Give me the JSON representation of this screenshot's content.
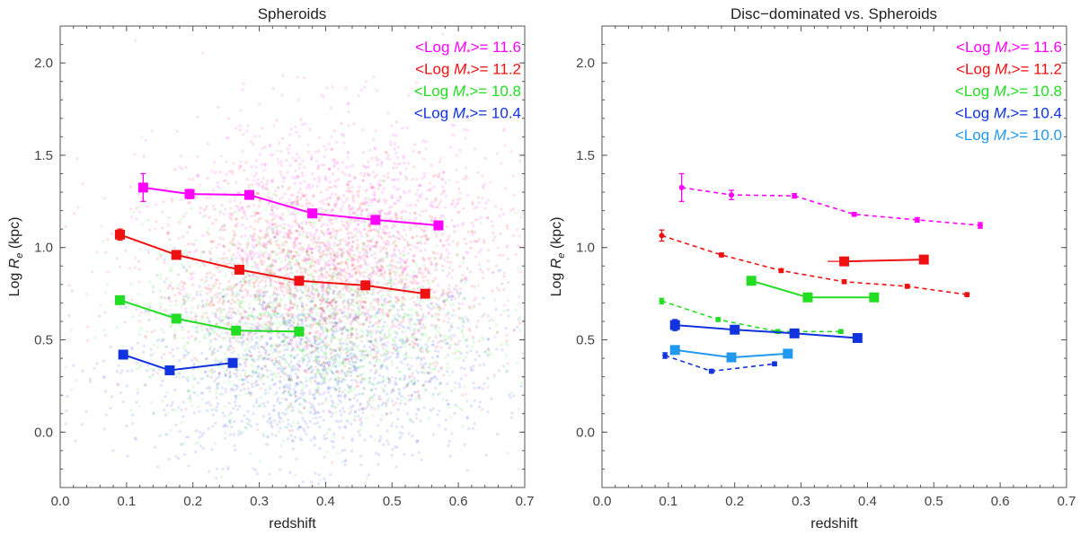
{
  "chart_data": [
    {
      "type": "scatter",
      "title": "Spheroids",
      "xlabel": "redshift",
      "ylabel_prefix": "Log ",
      "ylabel_var": "R",
      "ylabel_sub": "e",
      "ylabel_suffix": " (kpc)",
      "xlim": [
        0.0,
        0.7
      ],
      "ylim": [
        -0.3,
        2.2
      ],
      "xticks": [
        "0.0",
        "0.1",
        "0.2",
        "0.3",
        "0.4",
        "0.5",
        "0.6",
        "0.7"
      ],
      "yticks": [
        "0.0",
        "0.5",
        "1.0",
        "1.5",
        "2.0"
      ],
      "background_scatter": true,
      "legend_position": "top-right",
      "series": [
        {
          "legend_pre": "<Log ",
          "legend_var": "M",
          "legend_sub": "*",
          "legend_post": ">= 11.6",
          "color": "#ff00ff",
          "style": "solid",
          "x": [
            0.125,
            0.195,
            0.285,
            0.38,
            0.475,
            0.57
          ],
          "y": [
            1.325,
            1.29,
            1.285,
            1.185,
            1.15,
            1.12
          ],
          "err": [
            0.075,
            0.025,
            0.015,
            0.012,
            0.012,
            0.012
          ]
        },
        {
          "legend_pre": "<Log ",
          "legend_var": "M",
          "legend_sub": "*",
          "legend_post": ">= 11.2",
          "color": "#ee1111",
          "style": "solid",
          "x": [
            0.09,
            0.175,
            0.27,
            0.36,
            0.46,
            0.55
          ],
          "y": [
            1.07,
            0.96,
            0.88,
            0.82,
            0.795,
            0.75
          ],
          "err": [
            0.03,
            0.012,
            0.01,
            0.01,
            0.01,
            0.01
          ]
        },
        {
          "legend_pre": "<Log ",
          "legend_var": "M",
          "legend_sub": "*",
          "legend_post": ">= 10.8",
          "color": "#22dd22",
          "style": "solid",
          "x": [
            0.09,
            0.175,
            0.265,
            0.36
          ],
          "y": [
            0.715,
            0.615,
            0.55,
            0.545
          ],
          "err": [
            0.015,
            0.01,
            0.01,
            0.01
          ]
        },
        {
          "legend_pre": "<Log ",
          "legend_var": "M",
          "legend_sub": "*",
          "legend_post": ">= 10.4",
          "color": "#1133dd",
          "style": "solid",
          "x": [
            0.095,
            0.165,
            0.26
          ],
          "y": [
            0.42,
            0.335,
            0.375
          ],
          "err": [
            0.015,
            0.01,
            0.01
          ]
        }
      ]
    },
    {
      "type": "line",
      "title": "Disc−dominated vs. Spheroids",
      "xlabel": "redshift",
      "ylabel_prefix": "Log ",
      "ylabel_var": "R",
      "ylabel_sub": "e",
      "ylabel_suffix": " (kpc)",
      "xlim": [
        0.0,
        0.7
      ],
      "ylim": [
        -0.3,
        2.2
      ],
      "xticks": [
        "0.0",
        "0.1",
        "0.2",
        "0.3",
        "0.4",
        "0.5",
        "0.6",
        "0.7"
      ],
      "yticks": [
        "0.0",
        "0.5",
        "1.0",
        "1.5",
        "2.0"
      ],
      "background_scatter": false,
      "legend_position": "top-right",
      "legend": [
        {
          "pre": "<Log ",
          "var": "M",
          "sub": "*",
          "post": ">= 11.6",
          "color": "#ff00ff"
        },
        {
          "pre": "<Log ",
          "var": "M",
          "sub": "*",
          "post": ">= 11.2",
          "color": "#ee1111"
        },
        {
          "pre": "<Log ",
          "var": "M",
          "sub": "*",
          "post": ">= 10.8",
          "color": "#22dd22"
        },
        {
          "pre": "<Log ",
          "var": "M",
          "sub": "*",
          "post": ">= 10.4",
          "color": "#1133dd"
        },
        {
          "pre": "<Log ",
          "var": "M",
          "sub": "*",
          "post": ">= 10.0",
          "color": "#2299ee"
        }
      ],
      "series": [
        {
          "color": "#ff00ff",
          "style": "dashed",
          "marker": "small",
          "x": [
            0.12,
            0.195,
            0.29,
            0.38,
            0.475,
            0.57
          ],
          "y": [
            1.325,
            1.285,
            1.28,
            1.18,
            1.15,
            1.12
          ],
          "err": [
            0.075,
            0.025,
            0.012,
            0.01,
            0.012,
            0.015
          ]
        },
        {
          "color": "#ee1111",
          "style": "dashed",
          "marker": "small",
          "x": [
            0.09,
            0.18,
            0.27,
            0.365,
            0.46,
            0.55
          ],
          "y": [
            1.065,
            0.96,
            0.875,
            0.815,
            0.79,
            0.745
          ],
          "err": [
            0.03,
            0.01,
            0.01,
            0.01,
            0.01,
            0.01
          ]
        },
        {
          "color": "#22dd22",
          "style": "dashed",
          "marker": "small",
          "x": [
            0.09,
            0.175,
            0.265,
            0.36
          ],
          "y": [
            0.71,
            0.61,
            0.545,
            0.545
          ],
          "err": [
            0.015,
            0.01,
            0.01,
            0.01
          ]
        },
        {
          "color": "#1133dd",
          "style": "dashed",
          "marker": "small",
          "x": [
            0.095,
            0.165,
            0.26
          ],
          "y": [
            0.415,
            0.33,
            0.37
          ],
          "err": [
            0.015,
            0.01,
            0.01
          ]
        },
        {
          "color": "#ee1111",
          "style": "solid",
          "marker": "square",
          "x": [
            0.365,
            0.485
          ],
          "y": [
            0.925,
            0.935
          ],
          "err": [
            0.015,
            0.015
          ],
          "xerr": [
            0.025,
            0
          ]
        },
        {
          "color": "#22dd22",
          "style": "solid",
          "marker": "square",
          "x": [
            0.225,
            0.31,
            0.41
          ],
          "y": [
            0.82,
            0.73,
            0.73
          ],
          "err": [
            0.02,
            0.01,
            0.01
          ]
        },
        {
          "color": "#1133dd",
          "style": "solid",
          "marker": "square",
          "x": [
            0.11,
            0.2,
            0.29,
            0.385
          ],
          "y": [
            0.58,
            0.555,
            0.535,
            0.51
          ],
          "err": [
            0.03,
            0.015,
            0.01,
            0.01
          ]
        },
        {
          "color": "#2299ee",
          "style": "solid",
          "marker": "square",
          "x": [
            0.11,
            0.195,
            0.28
          ],
          "y": [
            0.445,
            0.405,
            0.425
          ],
          "err": [
            0.02,
            0.015,
            0.01
          ]
        }
      ]
    }
  ]
}
